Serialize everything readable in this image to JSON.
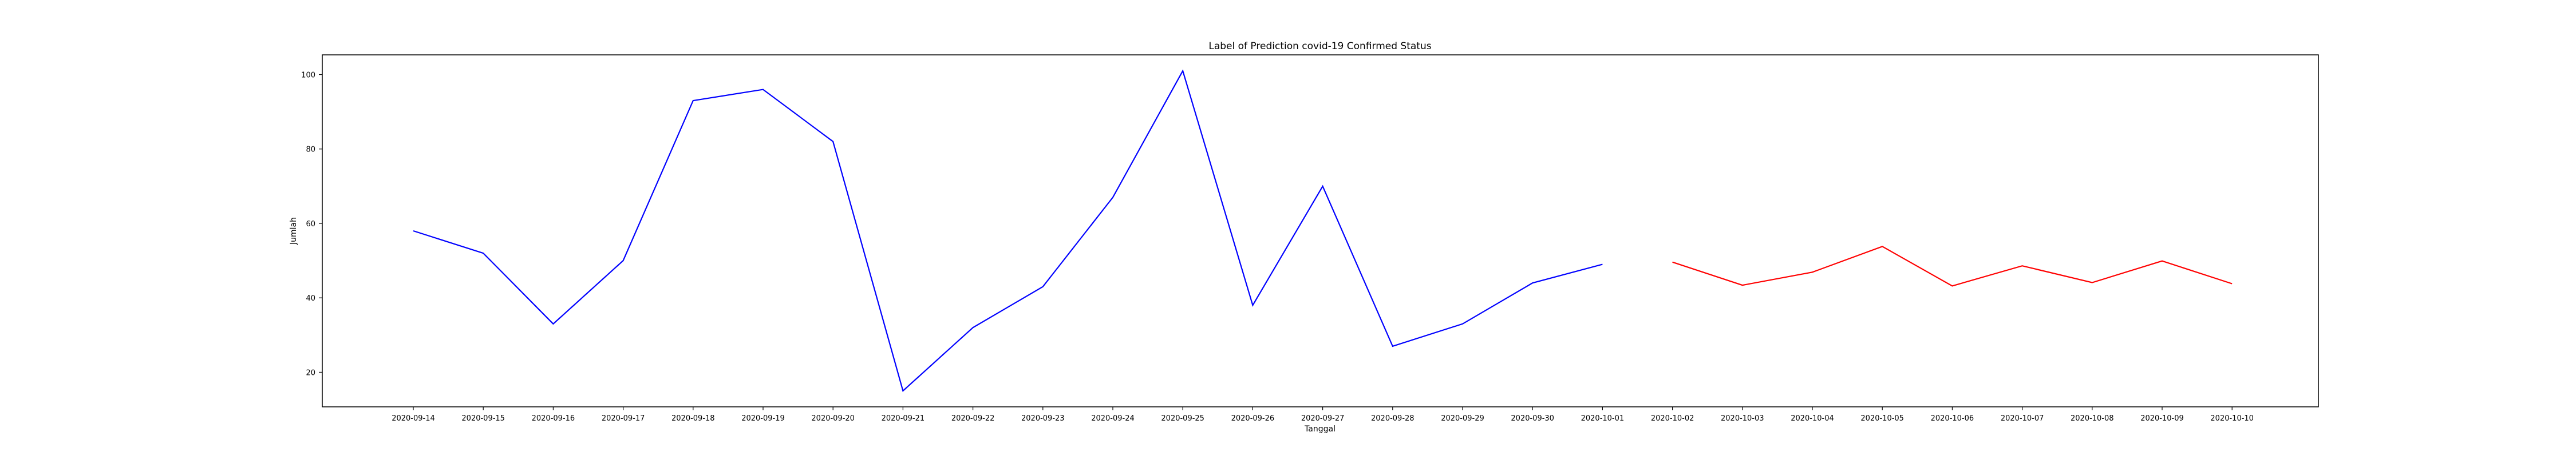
{
  "chart_data": {
    "type": "line",
    "title": "Label of Prediction covid-19 Confirmed Status",
    "xlabel": "Tanggal",
    "ylabel": "Jumlah",
    "x": [
      "2020-09-14",
      "2020-09-15",
      "2020-09-16",
      "2020-09-17",
      "2020-09-18",
      "2020-09-19",
      "2020-09-20",
      "2020-09-21",
      "2020-09-22",
      "2020-09-23",
      "2020-09-24",
      "2020-09-25",
      "2020-09-26",
      "2020-09-27",
      "2020-09-28",
      "2020-09-29",
      "2020-09-30",
      "2020-10-01",
      "2020-10-02",
      "2020-10-03",
      "2020-10-04",
      "2020-10-05",
      "2020-10-06",
      "2020-10-07",
      "2020-10-08",
      "2020-10-09",
      "2020-10-10"
    ],
    "ylim": [
      10.7,
      105.3
    ],
    "yticks": [
      20,
      40,
      60,
      80,
      100
    ],
    "grid": false,
    "series": [
      {
        "color": "#0000ff",
        "x": [
          "2020-09-14",
          "2020-09-15",
          "2020-09-16",
          "2020-09-17",
          "2020-09-18",
          "2020-09-19",
          "2020-09-20",
          "2020-09-21",
          "2020-09-22",
          "2020-09-23",
          "2020-09-24",
          "2020-09-25",
          "2020-09-26",
          "2020-09-27",
          "2020-09-28",
          "2020-09-29",
          "2020-09-30",
          "2020-10-01"
        ],
        "values": [
          58,
          52,
          33,
          50,
          93,
          96,
          82,
          15,
          32,
          43,
          67,
          101,
          38,
          70,
          27,
          33,
          44,
          49
        ]
      },
      {
        "color": "#ff0000",
        "x": [
          "2020-10-02",
          "2020-10-03",
          "2020-10-04",
          "2020-10-05",
          "2020-10-06",
          "2020-10-07",
          "2020-10-08",
          "2020-10-09",
          "2020-10-10"
        ],
        "values": [
          49.6,
          43.4,
          46.9,
          53.8,
          43.2,
          48.6,
          44.1,
          49.9,
          43.8
        ]
      }
    ]
  }
}
